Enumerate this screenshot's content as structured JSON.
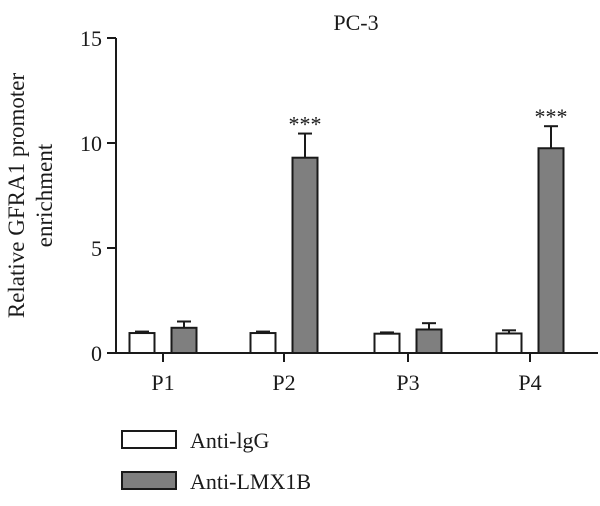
{
  "chart_data": {
    "type": "bar",
    "title": "PC-3",
    "ylabel_lines": [
      "Relative GFRA1 promoter",
      "enrichment"
    ],
    "xlabel": "",
    "categories": [
      "P1",
      "P2",
      "P3",
      "P4"
    ],
    "ylim": [
      0,
      15
    ],
    "yticks": [
      0,
      5,
      10,
      15
    ],
    "grid": false,
    "legend_position": "bottom-left",
    "series": [
      {
        "name": "Anti-IgG",
        "label": "Anti-lgG",
        "color": "#ffffff",
        "values": [
          0.95,
          0.95,
          0.92,
          0.93
        ],
        "errors": [
          0.07,
          0.07,
          0.06,
          0.15
        ]
      },
      {
        "name": "Anti-LMX1B",
        "label": "Anti-LMX1B",
        "color": "#7f7f7f",
        "values": [
          1.2,
          9.3,
          1.12,
          9.75
        ],
        "errors": [
          0.3,
          1.15,
          0.3,
          1.05
        ]
      }
    ],
    "annotations": [
      {
        "category": "P2",
        "series": "Anti-LMX1B",
        "text": "***"
      },
      {
        "category": "P4",
        "series": "Anti-LMX1B",
        "text": "***"
      }
    ]
  }
}
